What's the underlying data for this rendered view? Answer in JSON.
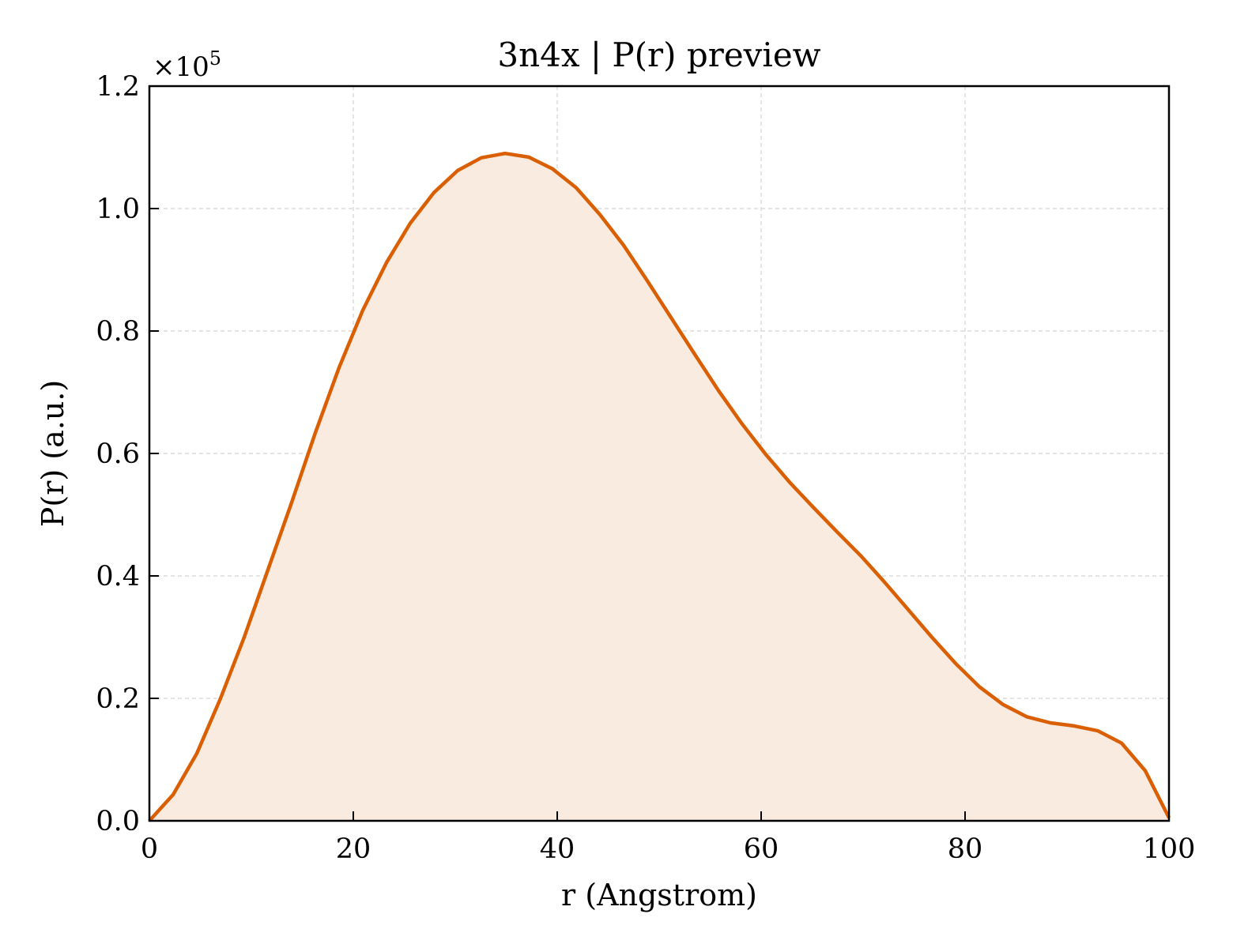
{
  "chart_data": {
    "type": "area",
    "title": "3n4x | P(r) preview",
    "xlabel": "r (Angstrom)",
    "ylabel": "P(r) (a.u.)",
    "y_offset_label": {
      "base": "×10",
      "exponent": "5"
    },
    "xlim": [
      0,
      100
    ],
    "ylim": [
      0,
      1.2
    ],
    "y_scale_factor": 100000,
    "x_ticks": [
      0,
      20,
      40,
      60,
      80,
      100
    ],
    "x_tick_labels": [
      "0",
      "20",
      "40",
      "60",
      "80",
      "100"
    ],
    "y_ticks": [
      0,
      0.2,
      0.4,
      0.6,
      0.8,
      1.0,
      1.2
    ],
    "y_tick_labels": [
      "0.0",
      "0.2",
      "0.4",
      "0.6",
      "0.8",
      "1.0",
      "1.2"
    ],
    "grid": true,
    "colors": {
      "line": "#d95f02",
      "fill": "#f9ebe0"
    },
    "series": [
      {
        "x": [
          0,
          2.33,
          4.65,
          6.98,
          9.3,
          11.63,
          13.95,
          16.28,
          18.6,
          20.93,
          23.26,
          25.58,
          27.91,
          30.23,
          32.56,
          34.88,
          37.21,
          39.53,
          41.86,
          44.19,
          46.51,
          48.84,
          51.16,
          53.49,
          55.81,
          58.14,
          60.47,
          62.79,
          65.12,
          67.44,
          69.77,
          72.09,
          74.42,
          76.74,
          79.07,
          81.4,
          83.72,
          86.05,
          88.37,
          90.7,
          93.02,
          95.35,
          97.67,
          100
        ],
        "y": [
          0,
          0.043,
          0.11,
          0.2,
          0.3,
          0.41,
          0.52,
          0.634,
          0.74,
          0.834,
          0.912,
          0.976,
          1.026,
          1.062,
          1.083,
          1.09,
          1.084,
          1.065,
          1.034,
          0.99,
          0.94,
          0.882,
          0.822,
          0.762,
          0.703,
          0.648,
          0.598,
          0.553,
          0.512,
          0.472,
          0.433,
          0.39,
          0.345,
          0.3,
          0.257,
          0.219,
          0.19,
          0.17,
          0.16,
          0.155,
          0.147,
          0.127,
          0.082,
          0.005
        ]
      }
    ]
  }
}
